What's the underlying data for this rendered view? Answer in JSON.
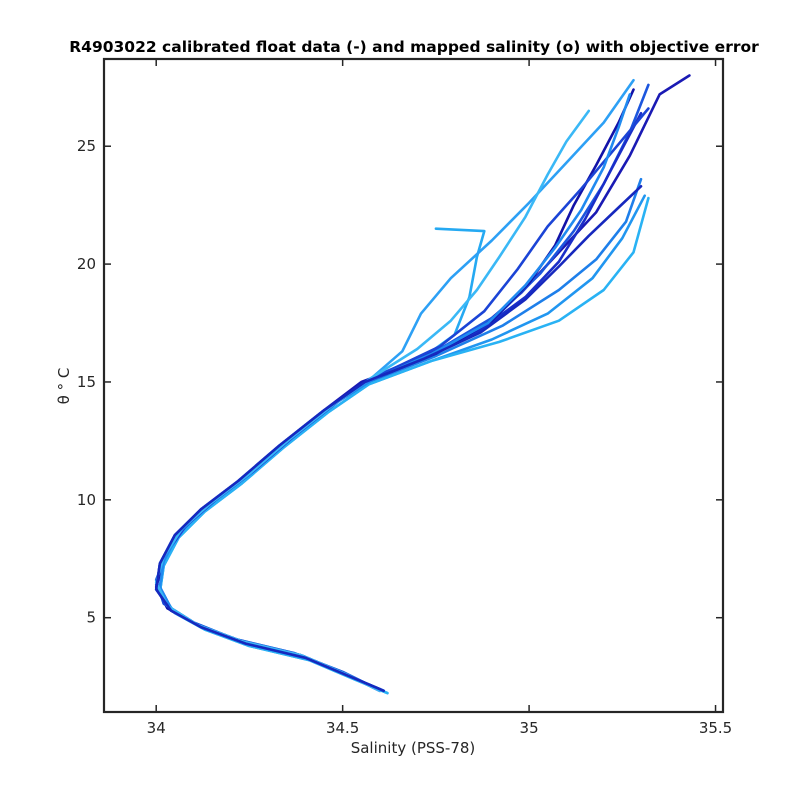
{
  "chart_data": {
    "type": "line",
    "title": "R4903022 calibrated float data (-) and mapped salinity (o) with objective error",
    "xlabel": "Salinity (PSS-78)",
    "ylabel": "θ ° C",
    "xlim": [
      33.86,
      35.52
    ],
    "ylim": [
      1.0,
      28.7
    ],
    "xticks": [
      34,
      34.5,
      35,
      35.5
    ],
    "xtick_labels": [
      "34",
      "34.5",
      "35",
      "35.5"
    ],
    "yticks": [
      5,
      10,
      15,
      20,
      25
    ],
    "ytick_labels": [
      "5",
      "10",
      "15",
      "20",
      "25"
    ],
    "grid": false,
    "colors": {
      "profile_dark": "#1010b0",
      "profile_mid": "#1a6fe6",
      "profile_light": "#22aaf0"
    },
    "series": [
      {
        "color": "#1a1ab4",
        "values": [
          [
            34.61,
            1.9
          ],
          [
            34.52,
            2.5
          ],
          [
            34.4,
            3.3
          ],
          [
            34.24,
            3.9
          ],
          [
            34.12,
            4.6
          ],
          [
            34.04,
            5.3
          ],
          [
            34.0,
            6.2
          ],
          [
            34.01,
            7.3
          ],
          [
            34.05,
            8.5
          ],
          [
            34.12,
            9.6
          ],
          [
            34.22,
            10.8
          ],
          [
            34.33,
            12.3
          ],
          [
            34.45,
            13.8
          ],
          [
            34.55,
            15.0
          ],
          [
            34.72,
            16.0
          ],
          [
            34.87,
            17.3
          ],
          [
            34.98,
            18.8
          ],
          [
            35.08,
            20.5
          ],
          [
            35.18,
            22.2
          ],
          [
            35.27,
            24.6
          ],
          [
            35.35,
            27.2
          ],
          [
            35.43,
            28.0
          ]
        ]
      },
      {
        "color": "#1c56de",
        "values": [
          [
            34.6,
            1.9
          ],
          [
            34.51,
            2.6
          ],
          [
            34.39,
            3.4
          ],
          [
            34.23,
            4.0
          ],
          [
            34.11,
            4.7
          ],
          [
            34.03,
            5.4
          ],
          [
            34.0,
            6.4
          ],
          [
            34.02,
            7.5
          ],
          [
            34.07,
            8.7
          ],
          [
            34.14,
            9.8
          ],
          [
            34.24,
            11.0
          ],
          [
            34.35,
            12.5
          ],
          [
            34.47,
            14.0
          ],
          [
            34.58,
            15.2
          ],
          [
            34.76,
            16.4
          ],
          [
            34.92,
            17.9
          ],
          [
            35.03,
            19.6
          ],
          [
            35.12,
            21.4
          ],
          [
            35.2,
            23.4
          ],
          [
            35.27,
            25.6
          ],
          [
            35.32,
            27.6
          ]
        ]
      },
      {
        "color": "#2196f0",
        "values": [
          [
            34.62,
            1.8
          ],
          [
            34.53,
            2.4
          ],
          [
            34.41,
            3.2
          ],
          [
            34.25,
            3.8
          ],
          [
            34.13,
            4.5
          ],
          [
            34.05,
            5.2
          ],
          [
            34.01,
            6.1
          ],
          [
            34.02,
            7.2
          ],
          [
            34.06,
            8.4
          ],
          [
            34.13,
            9.5
          ],
          [
            34.23,
            10.7
          ],
          [
            34.34,
            12.2
          ],
          [
            34.46,
            13.7
          ],
          [
            34.57,
            14.9
          ],
          [
            34.74,
            15.9
          ],
          [
            34.9,
            16.8
          ],
          [
            35.05,
            17.9
          ],
          [
            35.17,
            19.4
          ],
          [
            35.25,
            21.1
          ],
          [
            35.31,
            22.9
          ]
        ]
      },
      {
        "color": "#25a9f2",
        "values": [
          [
            34.59,
            2.0
          ],
          [
            34.5,
            2.7
          ],
          [
            34.37,
            3.5
          ],
          [
            34.21,
            4.1
          ],
          [
            34.1,
            4.8
          ],
          [
            34.02,
            5.6
          ],
          [
            34.0,
            6.6
          ],
          [
            34.03,
            7.8
          ],
          [
            34.08,
            8.9
          ],
          [
            34.16,
            10.0
          ],
          [
            34.26,
            11.2
          ],
          [
            34.37,
            12.7
          ],
          [
            34.49,
            14.2
          ],
          [
            34.6,
            15.3
          ],
          [
            34.73,
            16.2
          ],
          [
            34.8,
            17.0
          ],
          [
            34.84,
            18.6
          ],
          [
            34.86,
            20.3
          ],
          [
            34.88,
            21.4
          ],
          [
            34.75,
            21.5
          ]
        ]
      },
      {
        "color": "#1a2ec8",
        "values": [
          [
            34.61,
            1.9
          ],
          [
            34.52,
            2.5
          ],
          [
            34.4,
            3.3
          ],
          [
            34.24,
            3.9
          ],
          [
            34.12,
            4.6
          ],
          [
            34.04,
            5.4
          ],
          [
            34.01,
            6.3
          ],
          [
            34.02,
            7.4
          ],
          [
            34.06,
            8.6
          ],
          [
            34.13,
            9.7
          ],
          [
            34.23,
            10.9
          ],
          [
            34.34,
            12.4
          ],
          [
            34.46,
            13.9
          ],
          [
            34.58,
            15.1
          ],
          [
            34.72,
            16.1
          ],
          [
            34.86,
            17.1
          ],
          [
            34.99,
            18.6
          ],
          [
            35.08,
            20.1
          ],
          [
            35.15,
            21.9
          ],
          [
            35.22,
            24.0
          ],
          [
            35.3,
            26.4
          ]
        ]
      },
      {
        "color": "#2da0f5",
        "values": [
          [
            34.6,
            1.9
          ],
          [
            34.51,
            2.6
          ],
          [
            34.39,
            3.4
          ],
          [
            34.23,
            4.0
          ],
          [
            34.11,
            4.7
          ],
          [
            34.03,
            5.5
          ],
          [
            34.0,
            6.5
          ],
          [
            34.02,
            7.6
          ],
          [
            34.07,
            8.8
          ],
          [
            34.15,
            9.9
          ],
          [
            34.25,
            11.1
          ],
          [
            34.36,
            12.6
          ],
          [
            34.48,
            14.1
          ],
          [
            34.58,
            15.2
          ],
          [
            34.66,
            16.3
          ],
          [
            34.71,
            17.9
          ],
          [
            34.79,
            19.4
          ],
          [
            34.9,
            21.0
          ],
          [
            35.0,
            22.6
          ],
          [
            35.1,
            24.3
          ],
          [
            35.2,
            26.0
          ],
          [
            35.28,
            27.8
          ]
        ]
      },
      {
        "color": "#1e7fea",
        "values": [
          [
            34.61,
            1.9
          ],
          [
            34.52,
            2.5
          ],
          [
            34.4,
            3.3
          ],
          [
            34.24,
            3.9
          ],
          [
            34.12,
            4.6
          ],
          [
            34.04,
            5.3
          ],
          [
            34.0,
            6.2
          ],
          [
            34.01,
            7.3
          ],
          [
            34.05,
            8.5
          ],
          [
            34.12,
            9.6
          ],
          [
            34.22,
            10.8
          ],
          [
            34.33,
            12.3
          ],
          [
            34.45,
            13.8
          ],
          [
            34.57,
            15.0
          ],
          [
            34.75,
            16.1
          ],
          [
            34.93,
            17.4
          ],
          [
            35.08,
            18.9
          ],
          [
            35.18,
            20.2
          ],
          [
            35.26,
            21.8
          ],
          [
            35.3,
            23.6
          ]
        ]
      },
      {
        "color": "#1212a8",
        "values": [
          [
            34.6,
            1.9
          ],
          [
            34.51,
            2.6
          ],
          [
            34.39,
            3.4
          ],
          [
            34.23,
            4.0
          ],
          [
            34.11,
            4.7
          ],
          [
            34.03,
            5.4
          ],
          [
            34.0,
            6.3
          ],
          [
            34.02,
            7.4
          ],
          [
            34.06,
            8.6
          ],
          [
            34.13,
            9.7
          ],
          [
            34.23,
            10.9
          ],
          [
            34.34,
            12.4
          ],
          [
            34.46,
            13.9
          ],
          [
            34.58,
            15.1
          ],
          [
            34.75,
            16.2
          ],
          [
            34.9,
            17.6
          ],
          [
            35.0,
            19.2
          ],
          [
            35.07,
            20.8
          ],
          [
            35.12,
            22.5
          ],
          [
            35.18,
            24.2
          ],
          [
            35.24,
            26.0
          ],
          [
            35.28,
            27.4
          ]
        ]
      },
      {
        "color": "#29b2f4",
        "values": [
          [
            34.62,
            1.8
          ],
          [
            34.53,
            2.4
          ],
          [
            34.41,
            3.2
          ],
          [
            34.25,
            3.8
          ],
          [
            34.13,
            4.5
          ],
          [
            34.05,
            5.2
          ],
          [
            34.01,
            6.1
          ],
          [
            34.02,
            7.2
          ],
          [
            34.06,
            8.4
          ],
          [
            34.13,
            9.5
          ],
          [
            34.23,
            10.7
          ],
          [
            34.34,
            12.2
          ],
          [
            34.46,
            13.7
          ],
          [
            34.57,
            14.9
          ],
          [
            34.74,
            15.9
          ],
          [
            34.92,
            16.7
          ],
          [
            35.08,
            17.6
          ],
          [
            35.2,
            18.9
          ],
          [
            35.28,
            20.5
          ],
          [
            35.32,
            22.8
          ]
        ]
      },
      {
        "color": "#1b44d6",
        "values": [
          [
            34.59,
            2.0
          ],
          [
            34.5,
            2.7
          ],
          [
            34.37,
            3.5
          ],
          [
            34.21,
            4.1
          ],
          [
            34.1,
            4.8
          ],
          [
            34.02,
            5.6
          ],
          [
            34.0,
            6.6
          ],
          [
            34.03,
            7.8
          ],
          [
            34.08,
            8.9
          ],
          [
            34.16,
            10.0
          ],
          [
            34.26,
            11.2
          ],
          [
            34.37,
            12.7
          ],
          [
            34.49,
            14.2
          ],
          [
            34.6,
            15.3
          ],
          [
            34.76,
            16.5
          ],
          [
            34.88,
            18.0
          ],
          [
            34.97,
            19.8
          ],
          [
            35.05,
            21.6
          ],
          [
            35.14,
            23.2
          ],
          [
            35.23,
            24.9
          ],
          [
            35.32,
            26.6
          ]
        ]
      },
      {
        "color": "#208af0",
        "values": [
          [
            34.61,
            1.9
          ],
          [
            34.52,
            2.5
          ],
          [
            34.4,
            3.3
          ],
          [
            34.24,
            3.9
          ],
          [
            34.12,
            4.6
          ],
          [
            34.04,
            5.4
          ],
          [
            34.01,
            6.3
          ],
          [
            34.02,
            7.4
          ],
          [
            34.06,
            8.6
          ],
          [
            34.13,
            9.7
          ],
          [
            34.23,
            10.9
          ],
          [
            34.34,
            12.4
          ],
          [
            34.46,
            13.9
          ],
          [
            34.58,
            15.1
          ],
          [
            34.74,
            16.2
          ],
          [
            34.89,
            17.5
          ],
          [
            34.99,
            19.1
          ],
          [
            35.07,
            20.7
          ],
          [
            35.14,
            22.3
          ],
          [
            35.2,
            24.1
          ],
          [
            35.24,
            25.8
          ],
          [
            35.27,
            27.2
          ]
        ]
      },
      {
        "color": "#3ab8f6",
        "values": [
          [
            34.6,
            1.9
          ],
          [
            34.51,
            2.6
          ],
          [
            34.39,
            3.4
          ],
          [
            34.23,
            4.0
          ],
          [
            34.11,
            4.7
          ],
          [
            34.03,
            5.5
          ],
          [
            34.0,
            6.5
          ],
          [
            34.02,
            7.6
          ],
          [
            34.07,
            8.8
          ],
          [
            34.15,
            9.9
          ],
          [
            34.25,
            11.1
          ],
          [
            34.36,
            12.6
          ],
          [
            34.48,
            14.1
          ],
          [
            34.58,
            15.2
          ],
          [
            34.7,
            16.4
          ],
          [
            34.79,
            17.6
          ],
          [
            34.86,
            18.9
          ],
          [
            34.92,
            20.3
          ],
          [
            34.99,
            22.0
          ],
          [
            35.05,
            23.8
          ],
          [
            35.1,
            25.2
          ],
          [
            35.16,
            26.5
          ]
        ]
      },
      {
        "color": "#1628be",
        "values": [
          [
            34.61,
            1.9
          ],
          [
            34.52,
            2.5
          ],
          [
            34.4,
            3.3
          ],
          [
            34.24,
            3.9
          ],
          [
            34.12,
            4.6
          ],
          [
            34.04,
            5.3
          ],
          [
            34.0,
            6.2
          ],
          [
            34.01,
            7.3
          ],
          [
            34.05,
            8.5
          ],
          [
            34.12,
            9.6
          ],
          [
            34.22,
            10.8
          ],
          [
            34.33,
            12.3
          ],
          [
            34.45,
            13.8
          ],
          [
            34.56,
            15.0
          ],
          [
            34.72,
            16.0
          ],
          [
            34.87,
            17.1
          ],
          [
            34.99,
            18.5
          ],
          [
            35.08,
            19.9
          ],
          [
            35.16,
            21.2
          ],
          [
            35.24,
            22.4
          ],
          [
            35.3,
            23.3
          ]
        ]
      }
    ]
  }
}
